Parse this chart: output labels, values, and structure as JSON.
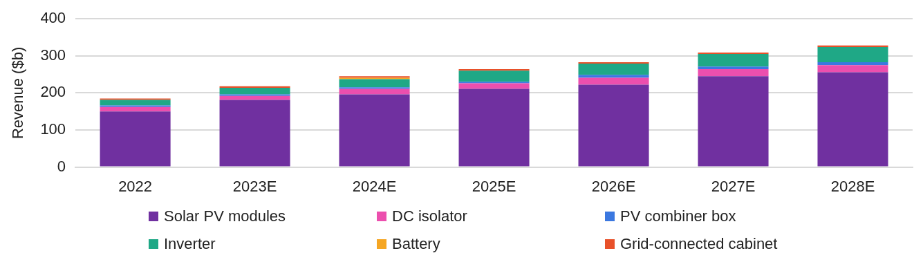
{
  "chart_data": {
    "type": "bar",
    "stacked": true,
    "ylabel": "Revenue ($b)",
    "categories": [
      "2022",
      "2023E",
      "2024E",
      "2025E",
      "2026E",
      "2027E",
      "2028E"
    ],
    "series": [
      {
        "name": "Solar PV modules",
        "color": "#7030a0",
        "values": [
          150,
          181,
          196,
          211,
          222,
          245,
          256
        ]
      },
      {
        "name": "DC isolator",
        "color": "#ec4fae",
        "values": [
          12,
          11,
          15,
          15,
          19,
          19,
          19
        ]
      },
      {
        "name": "PV combiner box",
        "color": "#3b78e0",
        "values": [
          4,
          4,
          4,
          4,
          8,
          7,
          8
        ]
      },
      {
        "name": "Inverter",
        "color": "#1fa886",
        "values": [
          15,
          18,
          22,
          30,
          30,
          34,
          41
        ]
      },
      {
        "name": "Battery",
        "color": "#f5a623",
        "values": [
          0,
          0,
          4,
          0,
          0,
          0,
          0
        ]
      },
      {
        "name": "Grid-connected cabinet",
        "color": "#e8512a",
        "values": [
          4,
          4,
          4,
          4,
          4,
          4,
          4
        ]
      }
    ],
    "ylim": [
      0,
      400
    ],
    "yticks": [
      0,
      100,
      200,
      300,
      400
    ],
    "grid": "y",
    "legend": "bottom"
  }
}
